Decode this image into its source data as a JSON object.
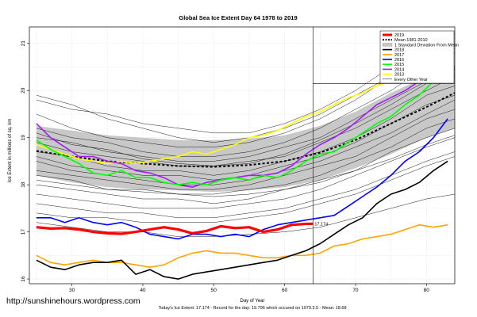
{
  "chart_data": {
    "type": "line",
    "title": "Global Sea Ice Extent Day 64 1978 to 2019",
    "xlabel": "Day of Year",
    "ylabel": "Ice Extent in millions of sq. km",
    "xlim": [
      24,
      84
    ],
    "ylim": [
      15.9,
      21.35
    ],
    "x_ticks": [
      30,
      40,
      50,
      60,
      70,
      80
    ],
    "y_ticks": [
      16,
      17,
      18,
      19,
      20,
      21
    ],
    "grid": true,
    "current_day_line": 64,
    "reference_level": 20.15,
    "legend_position": "top-right",
    "current_value_label": "17.174",
    "footer": "Today's Ice Extent: 17.174  - Record for the day: 19.796 which occured on 1979.3.5  - Mean: 18.68",
    "credit": "http://sunshinehours.wordpress.com",
    "band": {
      "name": "1 Standard Deviation From Mean",
      "color": "#c8c8c8",
      "x": [
        25,
        30,
        35,
        40,
        45,
        50,
        55,
        60,
        65,
        70,
        75,
        80,
        84
      ],
      "lower": [
        18.2,
        18.05,
        17.95,
        17.9,
        17.88,
        17.85,
        17.88,
        17.95,
        18.1,
        18.35,
        18.65,
        19.0,
        19.2
      ],
      "upper": [
        19.25,
        19.15,
        19.05,
        19.0,
        18.95,
        18.95,
        18.98,
        19.05,
        19.25,
        19.55,
        19.95,
        20.3,
        20.55
      ]
    },
    "other_years": {
      "name": "Every Other Year",
      "color": "#000000",
      "x": [
        25,
        30,
        35,
        40,
        45,
        50,
        55,
        60,
        65,
        70,
        75,
        80,
        84
      ],
      "lines": [
        [
          19.8,
          19.6,
          19.5,
          19.3,
          19.2,
          19.1,
          19.1,
          19.3,
          19.6,
          20.0,
          20.5,
          21.0,
          21.2
        ],
        [
          19.5,
          19.2,
          19.0,
          18.9,
          18.8,
          18.8,
          18.9,
          19.1,
          19.4,
          19.8,
          20.3,
          20.8,
          21.0
        ],
        [
          19.2,
          19.0,
          18.9,
          18.7,
          18.6,
          18.6,
          18.7,
          18.9,
          19.2,
          19.6,
          20.0,
          20.5,
          20.8
        ],
        [
          19.0,
          18.9,
          18.7,
          18.6,
          18.5,
          18.5,
          18.6,
          18.8,
          19.0,
          19.4,
          19.8,
          20.2,
          20.5
        ],
        [
          18.9,
          18.7,
          18.6,
          18.5,
          18.4,
          18.4,
          18.5,
          18.6,
          18.9,
          19.2,
          19.6,
          20.0,
          20.3
        ],
        [
          18.7,
          18.6,
          18.4,
          18.3,
          18.3,
          18.2,
          18.3,
          18.5,
          18.7,
          19.0,
          19.4,
          19.9,
          20.1
        ],
        [
          18.6,
          18.4,
          18.3,
          18.2,
          18.2,
          18.1,
          18.2,
          18.4,
          18.6,
          18.9,
          19.3,
          19.7,
          19.9
        ],
        [
          18.5,
          18.3,
          18.2,
          18.1,
          18.0,
          18.0,
          18.1,
          18.3,
          18.5,
          18.8,
          19.1,
          19.5,
          19.8
        ],
        [
          18.3,
          18.2,
          18.1,
          18.0,
          17.9,
          17.9,
          18.0,
          18.2,
          18.4,
          18.6,
          19.0,
          19.4,
          19.6
        ],
        [
          18.2,
          18.1,
          17.9,
          17.9,
          17.8,
          17.8,
          17.9,
          18.0,
          18.2,
          18.5,
          18.8,
          19.2,
          19.4
        ],
        [
          18.0,
          17.9,
          17.8,
          17.7,
          17.7,
          17.6,
          17.7,
          17.9,
          18.1,
          18.3,
          18.7,
          19.0,
          19.2
        ],
        [
          17.8,
          17.7,
          17.6,
          17.5,
          17.5,
          17.5,
          17.6,
          17.7,
          17.9,
          18.2,
          18.5,
          18.8,
          19.0
        ],
        [
          17.6,
          17.5,
          17.4,
          17.4,
          17.3,
          17.3,
          17.4,
          17.5,
          17.7,
          17.9,
          18.2,
          18.5,
          18.7
        ],
        [
          17.4,
          17.3,
          17.3,
          17.2,
          17.2,
          17.2,
          17.3,
          17.4,
          17.6,
          17.8,
          18.1,
          18.4,
          18.6
        ],
        [
          19.9,
          19.7,
          19.4,
          19.2,
          19.0,
          18.9,
          19.0,
          19.2,
          19.5,
          19.9,
          20.3,
          20.7,
          20.9
        ],
        [
          17.2,
          17.1,
          17.0,
          17.0,
          16.9,
          16.9,
          16.95,
          17.0,
          17.1,
          17.3,
          17.5,
          17.7,
          17.8
        ],
        [
          18.1,
          18.0,
          17.9,
          17.85,
          17.8,
          17.75,
          17.8,
          17.9,
          18.05,
          18.3,
          18.55,
          18.85,
          19.05
        ],
        [
          19.1,
          18.85,
          18.75,
          18.55,
          18.45,
          18.4,
          18.45,
          18.65,
          18.95,
          19.3,
          19.7,
          20.15,
          20.45
        ]
      ]
    },
    "mean": {
      "name": "Mean 1981-2010",
      "color": "#000000",
      "x": [
        25,
        30,
        35,
        40,
        45,
        50,
        55,
        60,
        65,
        70,
        75,
        80,
        84
      ],
      "values": [
        18.72,
        18.6,
        18.5,
        18.45,
        18.4,
        18.38,
        18.42,
        18.5,
        18.68,
        18.95,
        19.3,
        19.65,
        19.95
      ]
    },
    "series": [
      {
        "name": "2019",
        "color": "#ff0000",
        "width": 3.2,
        "x": [
          25,
          27,
          29,
          31,
          33,
          35,
          37,
          39,
          41,
          43,
          45,
          47,
          49,
          51,
          53,
          55,
          57,
          59,
          61,
          63,
          64
        ],
        "values": [
          17.1,
          17.07,
          17.08,
          17.05,
          17.0,
          16.97,
          16.96,
          17.0,
          17.05,
          17.1,
          17.05,
          16.97,
          17.02,
          17.12,
          17.08,
          17.1,
          17.0,
          17.05,
          17.15,
          17.17,
          17.174
        ]
      },
      {
        "name": "2018",
        "color": "#000000",
        "width": 1.6,
        "x": [
          25,
          27,
          29,
          31,
          33,
          35,
          37,
          39,
          41,
          43,
          45,
          47,
          49,
          51,
          53,
          55,
          57,
          59,
          61,
          63,
          65,
          67,
          69,
          71,
          73,
          75,
          77,
          79,
          81,
          83
        ],
        "values": [
          16.4,
          16.25,
          16.2,
          16.3,
          16.35,
          16.35,
          16.4,
          16.1,
          16.2,
          16.05,
          16.0,
          16.1,
          16.15,
          16.2,
          16.25,
          16.3,
          16.35,
          16.4,
          16.5,
          16.6,
          16.75,
          16.95,
          17.15,
          17.3,
          17.6,
          17.8,
          17.9,
          18.05,
          18.3,
          18.5
        ]
      },
      {
        "name": "2017",
        "color": "#ffa500",
        "width": 1.6,
        "x": [
          25,
          27,
          29,
          31,
          33,
          35,
          37,
          39,
          41,
          43,
          45,
          47,
          49,
          51,
          53,
          55,
          57,
          59,
          61,
          63,
          65,
          67,
          69,
          71,
          73,
          75,
          77,
          79,
          81,
          83
        ],
        "values": [
          16.5,
          16.35,
          16.3,
          16.35,
          16.4,
          16.35,
          16.35,
          16.3,
          16.25,
          16.3,
          16.45,
          16.55,
          16.6,
          16.55,
          16.55,
          16.5,
          16.45,
          16.45,
          16.5,
          16.5,
          16.55,
          16.7,
          16.75,
          16.85,
          16.9,
          16.95,
          17.05,
          17.15,
          17.1,
          17.15
        ]
      },
      {
        "name": "2016",
        "color": "#0000ff",
        "width": 1.6,
        "x": [
          25,
          27,
          29,
          31,
          33,
          35,
          37,
          39,
          41,
          43,
          45,
          47,
          49,
          51,
          53,
          55,
          57,
          59,
          61,
          63,
          65,
          67,
          69,
          71,
          73,
          75,
          77,
          79,
          81,
          83
        ],
        "values": [
          17.3,
          17.3,
          17.2,
          17.3,
          17.2,
          17.15,
          17.2,
          17.1,
          16.95,
          16.9,
          16.85,
          16.95,
          16.95,
          16.9,
          16.95,
          16.9,
          17.05,
          17.15,
          17.2,
          17.25,
          17.3,
          17.35,
          17.55,
          17.75,
          17.95,
          18.2,
          18.5,
          18.7,
          19.0,
          19.4
        ]
      },
      {
        "name": "2015",
        "color": "#00ff00",
        "width": 1.6,
        "x": [
          25,
          27,
          29,
          31,
          33,
          35,
          37,
          39,
          41,
          43,
          45,
          47,
          49,
          51,
          53,
          55,
          57,
          59,
          61,
          63,
          65,
          67,
          69,
          71,
          73,
          75,
          77,
          79,
          81,
          83
        ],
        "values": [
          18.95,
          18.75,
          18.6,
          18.45,
          18.25,
          18.2,
          18.3,
          18.15,
          18.15,
          18.05,
          18.0,
          18.05,
          18.0,
          18.1,
          18.15,
          18.1,
          18.2,
          18.15,
          18.3,
          18.5,
          18.65,
          18.7,
          18.9,
          19.1,
          19.3,
          19.45,
          19.7,
          19.9,
          20.2,
          20.6
        ]
      },
      {
        "name": "2014",
        "color": "#a020f0",
        "width": 1.6,
        "x": [
          25,
          27,
          29,
          31,
          33,
          35,
          37,
          39,
          41,
          43,
          45,
          47,
          49,
          51,
          53,
          55,
          57,
          59,
          61,
          63,
          65,
          67,
          69,
          71,
          73,
          75,
          77,
          79,
          81,
          83
        ],
        "values": [
          19.3,
          19.0,
          18.8,
          18.6,
          18.6,
          18.5,
          18.45,
          18.3,
          18.25,
          18.15,
          18.0,
          17.95,
          18.05,
          18.1,
          18.15,
          18.2,
          18.2,
          18.25,
          18.4,
          18.65,
          18.85,
          19.0,
          19.2,
          19.45,
          19.7,
          19.85,
          20.0,
          20.2,
          20.45,
          20.6
        ]
      },
      {
        "name": "2013",
        "color": "#ffff00",
        "width": 1.6,
        "x": [
          25,
          27,
          29,
          31,
          33,
          35,
          37,
          39,
          41,
          43,
          45,
          47,
          49,
          51,
          53,
          55,
          57,
          59,
          61,
          63,
          65,
          67,
          69,
          71,
          73,
          75,
          77,
          79,
          81,
          83
        ],
        "values": [
          18.85,
          18.75,
          18.65,
          18.55,
          18.5,
          18.45,
          18.5,
          18.45,
          18.5,
          18.55,
          18.6,
          18.7,
          18.65,
          18.75,
          18.85,
          19.0,
          19.05,
          19.15,
          19.3,
          19.45,
          19.55,
          19.7,
          19.85,
          19.95,
          20.1,
          20.2,
          20.3,
          20.35,
          20.45,
          20.5
        ]
      }
    ]
  }
}
